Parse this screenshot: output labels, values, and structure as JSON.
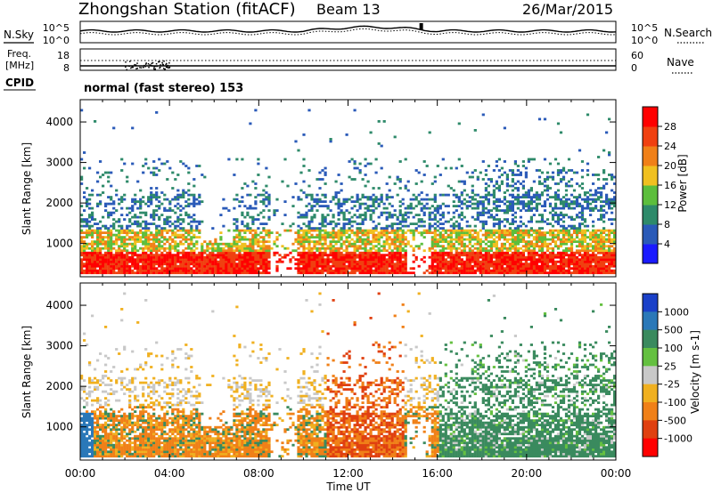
{
  "header": {
    "station": "Zhongshan Station (fitACF)",
    "beam": "Beam 13",
    "date": "26/Mar/2015"
  },
  "strips": {
    "nsky_label": "N.Sky",
    "nsky_ticks": [
      "10^5",
      "10^0"
    ],
    "nsearch_label": "N.Search",
    "nsearch_ticks": [
      "10^5",
      "10^0"
    ],
    "freq_label_1": "Freq.",
    "freq_label_2": "[MHz]",
    "freq_ticks": [
      "18",
      "8"
    ],
    "nave_label": "Nave",
    "nave_ticks": [
      "60",
      "0"
    ],
    "cpid_label": "CPID",
    "cpid_value": "normal (fast stereo) 153"
  },
  "chart_data": [
    {
      "type": "heatmap",
      "name": "Power",
      "ylabel": "Slant Range [km]",
      "y_ticks": [
        "1000",
        "2000",
        "3000",
        "4000"
      ],
      "ylim": [
        180,
        4550
      ],
      "x_ticks": [
        "00:00",
        "04:00",
        "08:00",
        "12:00",
        "16:00",
        "20:00",
        "00:00"
      ],
      "xlim_hours": [
        0,
        24
      ],
      "colorbar": {
        "label": "Power [dB]",
        "tick_labels": [
          "4",
          "8",
          "12",
          "16",
          "20",
          "24",
          "28"
        ],
        "colors": [
          "#1a1aff",
          "#2a5ab8",
          "#2e8a6a",
          "#5cbe3c",
          "#f0c020",
          "#f08018",
          "#f04010",
          "#ff0000"
        ]
      }
    },
    {
      "type": "heatmap",
      "name": "Velocity",
      "ylabel": "Slant Range [km]",
      "y_ticks": [
        "1000",
        "2000",
        "3000",
        "4000"
      ],
      "ylim": [
        180,
        4550
      ],
      "x_ticks": [
        "00:00",
        "04:00",
        "08:00",
        "12:00",
        "16:00",
        "20:00",
        "00:00"
      ],
      "xlim_hours": [
        0,
        24
      ],
      "xlabel": "Time UT",
      "colorbar": {
        "label": "Velocity [m s-1]",
        "tick_labels": [
          "1000",
          "500",
          "100",
          "25",
          "-25",
          "-100",
          "-500",
          "-1000"
        ],
        "colors": [
          "#1a40c8",
          "#2a78b8",
          "#3a8a5e",
          "#64c040",
          "#c8c8c8",
          "#f0b020",
          "#f08018",
          "#e04010",
          "#ff0000"
        ]
      }
    }
  ]
}
